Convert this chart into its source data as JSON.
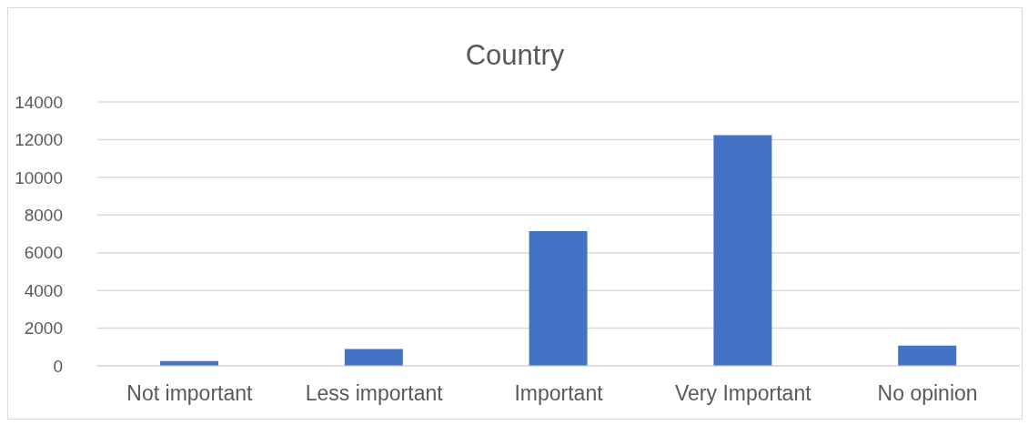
{
  "chart_data": {
    "type": "bar",
    "title": "Country",
    "categories": [
      "Not important",
      "Less important",
      "Important",
      "Very Important",
      "No opinion"
    ],
    "values": [
      250,
      890,
      7140,
      12240,
      1080
    ],
    "color": "#4472c4",
    "ylim": [
      0,
      14000
    ],
    "yticks": [
      0,
      2000,
      4000,
      6000,
      8000,
      10000,
      12000,
      14000
    ],
    "grid": "y"
  }
}
